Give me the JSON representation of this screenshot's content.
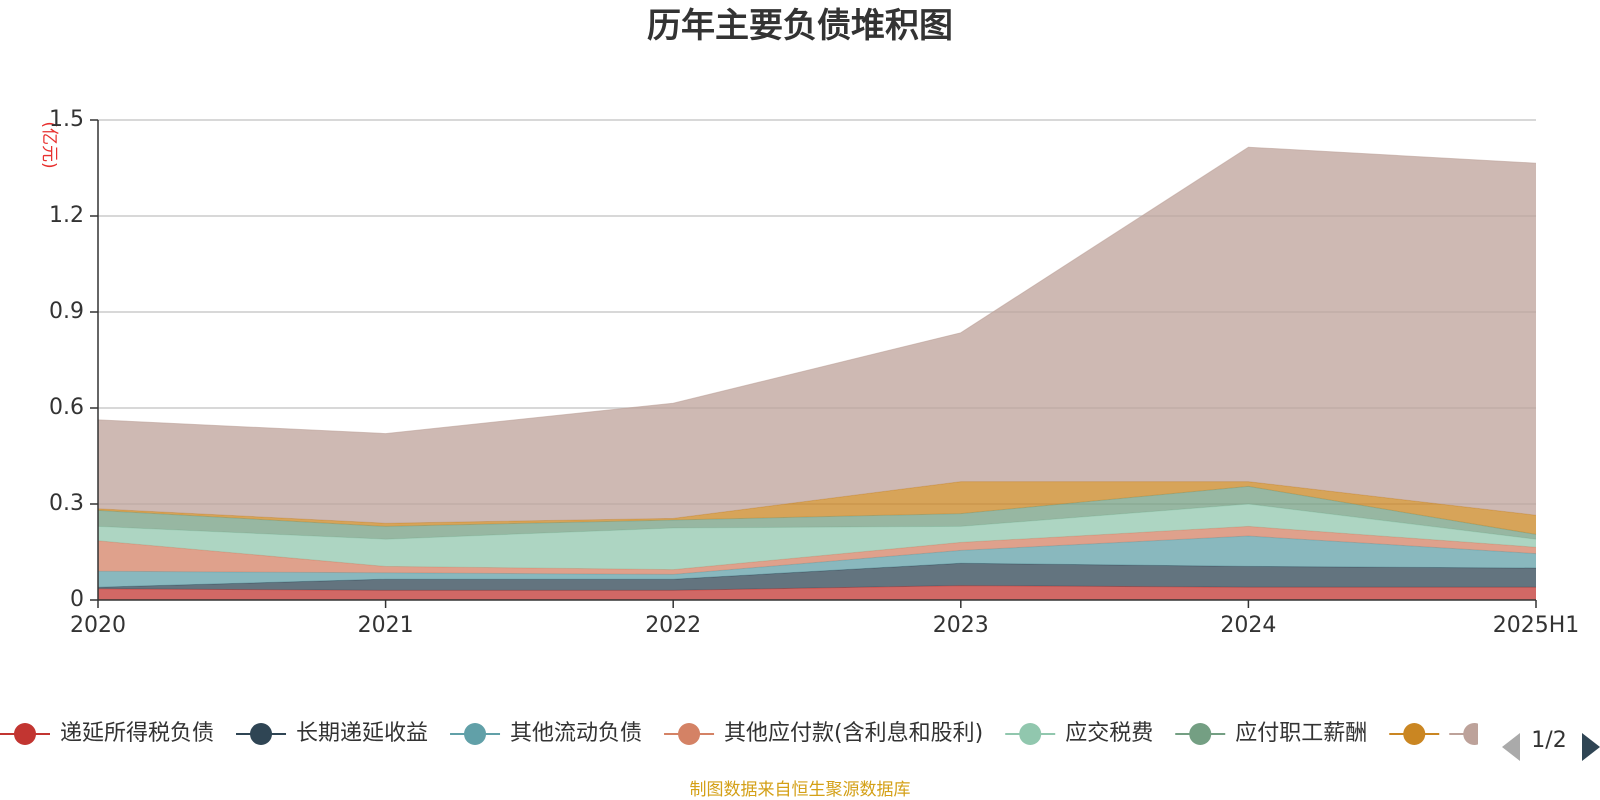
{
  "chart_data": {
    "type": "area",
    "title": "历年主要负债堆积图",
    "unit_label": "(亿元)",
    "unit_color": "#e8302e",
    "categories": [
      "2020",
      "2021",
      "2022",
      "2023",
      "2024",
      "2025H1"
    ],
    "y_ticks": [
      "0",
      "0.3",
      "0.6",
      "0.9",
      "1.2",
      "1.5"
    ],
    "ylim": [
      0,
      1.5
    ],
    "grid": true,
    "stacked": true,
    "series": [
      {
        "name": "递延所得税负债",
        "color": "#c23531",
        "values": [
          0.035,
          0.03,
          0.03,
          0.045,
          0.04,
          0.04
        ]
      },
      {
        "name": "长期递延收益",
        "color": "#2f4554",
        "values": [
          0.005,
          0.035,
          0.035,
          0.07,
          0.065,
          0.06
        ]
      },
      {
        "name": "其他流动负债",
        "color": "#61a0a8",
        "values": [
          0.05,
          0.02,
          0.015,
          0.04,
          0.095,
          0.045
        ]
      },
      {
        "name": "其他应付款(含利息和股利)",
        "color": "#d48265",
        "values": [
          0.095,
          0.02,
          0.015,
          0.025,
          0.03,
          0.02
        ]
      },
      {
        "name": "应交税费",
        "color": "#91c7ae",
        "values": [
          0.045,
          0.085,
          0.13,
          0.05,
          0.07,
          0.025
        ]
      },
      {
        "name": "应付职工薪酬",
        "color": "#749f83",
        "values": [
          0.05,
          0.04,
          0.025,
          0.04,
          0.055,
          0.015
        ]
      },
      {
        "name": "",
        "color": "#ca8622",
        "values": [
          0.005,
          0.01,
          0.005,
          0.1,
          0.015,
          0.06
        ]
      },
      {
        "name": "",
        "color": "#bda29a",
        "values": [
          0.278,
          0.28,
          0.36,
          0.465,
          1.045,
          1.1
        ]
      }
    ],
    "legend_placement": "bottom",
    "legend_page": "1/2"
  },
  "source_text": "制图数据来自恒生聚源数据库",
  "source_color": "#d4a017"
}
